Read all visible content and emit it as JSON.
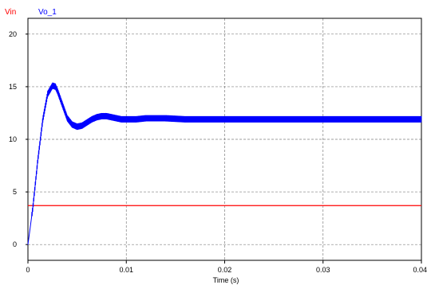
{
  "chart_data": {
    "type": "line",
    "title": "",
    "xlabel": "Time (s)",
    "ylabel": "",
    "xlim": [
      0,
      0.04
    ],
    "ylim": [
      -1.5,
      21.5
    ],
    "x_ticks": [
      0,
      0.01,
      0.02,
      0.03,
      0.04
    ],
    "x_tick_labels": [
      "0",
      "0.01",
      "0.02",
      "0.03",
      "0.04"
    ],
    "y_ticks": [
      0,
      5,
      10,
      15,
      20
    ],
    "y_tick_labels": [
      "0",
      "5",
      "10",
      "15",
      "20"
    ],
    "grid": true,
    "grid_style": "dashed",
    "legend_placement": "top-left",
    "series": [
      {
        "name": "Vin",
        "color": "#ff0000",
        "x": [
          0,
          0.04
        ],
        "y": [
          3.7,
          3.7
        ]
      },
      {
        "name": "Vo_1",
        "color": "#0000ff",
        "ripple_amplitude": 0.3,
        "x": [
          0,
          0.0005,
          0.001,
          0.0015,
          0.002,
          0.0025,
          0.0028,
          0.003,
          0.0035,
          0.004,
          0.0045,
          0.005,
          0.0055,
          0.006,
          0.0065,
          0.007,
          0.0075,
          0.008,
          0.0085,
          0.009,
          0.0095,
          0.01,
          0.011,
          0.012,
          0.013,
          0.014,
          0.016,
          0.02,
          0.025,
          0.03,
          0.035,
          0.04
        ],
        "y": [
          0,
          3.5,
          8.0,
          11.8,
          14.3,
          15.1,
          15.0,
          14.6,
          13.3,
          12.0,
          11.4,
          11.2,
          11.3,
          11.6,
          11.9,
          12.1,
          12.2,
          12.2,
          12.1,
          12.0,
          11.9,
          11.9,
          11.9,
          12.0,
          12.0,
          12.0,
          11.9,
          11.9,
          11.9,
          11.9,
          11.9,
          11.9
        ]
      }
    ]
  }
}
